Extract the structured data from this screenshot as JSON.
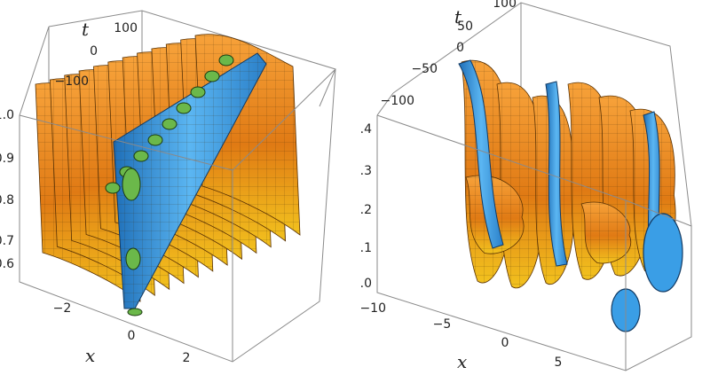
{
  "chart_data": [
    {
      "type": "3d-surface",
      "axes": {
        "x": {
          "label": "x",
          "ticks": [
            "−2",
            "0",
            "2"
          ],
          "range": [
            -3,
            3
          ]
        },
        "t": {
          "label": "t",
          "ticks": [
            "100",
            "0",
            "−100"
          ],
          "range": [
            -150,
            150
          ]
        },
        "z": {
          "label": "",
          "ticks": [
            "1.0",
            "0.9",
            "0.8",
            "0.7",
            "0.6"
          ],
          "range": [
            0.5,
            1.0
          ]
        }
      },
      "surfaces": [
        {
          "name": "",
          "color": "#e8871a",
          "pattern": "periodic sheets along t"
        },
        {
          "name": "",
          "color": "#3a9ee6",
          "pattern": "tube along t near x=0"
        },
        {
          "name": "",
          "color": "#6bb84a",
          "pattern": "inner core"
        }
      ]
    },
    {
      "type": "3d-surface",
      "axes": {
        "x": {
          "label": "x",
          "ticks": [
            "−5",
            "0",
            "5"
          ],
          "range": [
            -10,
            10
          ]
        },
        "t": {
          "label": "t",
          "ticks": [
            "100",
            "50",
            "0",
            "−50",
            "−100"
          ],
          "range": [
            -120,
            120
          ]
        },
        "z": {
          "label": "",
          "ticks": [
            "0.4",
            "0.3",
            "0.2",
            "0.1",
            "0.0",
            "−10"
          ],
          "range": [
            -0.05,
            0.45
          ]
        }
      },
      "surfaces": [
        {
          "name": "",
          "color": "#e8871a",
          "pattern": "curved lumps"
        },
        {
          "name": "",
          "color": "#3a9ee6",
          "pattern": "curved tubes"
        }
      ]
    }
  ]
}
